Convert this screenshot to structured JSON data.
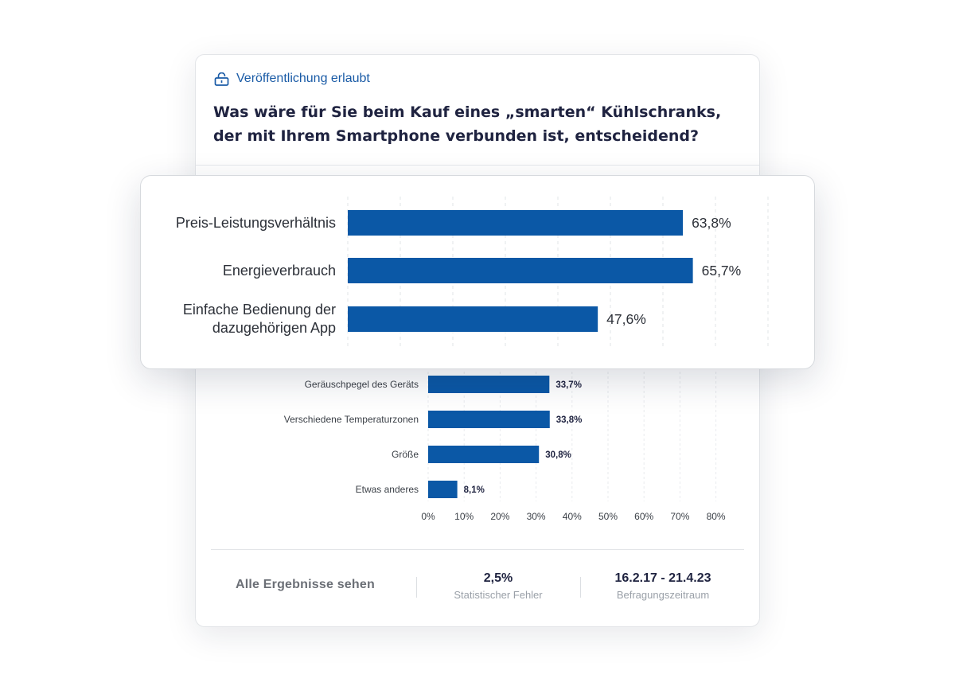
{
  "badge": {
    "label": "Veröffentlichung erlaubt",
    "icon": "unlock-icon"
  },
  "question": {
    "line1": "Was wäre für Sie beim Kauf eines „smarten“ Kühlschranks,",
    "line2": "der mit Ihrem Smartphone verbunden ist, entscheidend?"
  },
  "chart_data": {
    "type": "bar",
    "orientation": "horizontal",
    "categories": [
      "Preis-Leistungsverhältnis",
      "Energieverbrauch",
      "Einfache Bedienung der dazugehörigen App",
      "Geräuschpegel des Geräts",
      "Verschiedene Temperaturzonen",
      "Größe",
      "Etwas anderes"
    ],
    "values": [
      63.8,
      65.7,
      47.6,
      33.7,
      33.8,
      30.8,
      8.1
    ],
    "value_labels": [
      "63,8%",
      "65,7%",
      "47,6%",
      "33,7%",
      "33,8%",
      "30,8%",
      "8,1%"
    ],
    "xlim": [
      0,
      80
    ],
    "x_ticks": [
      "0%",
      "10%",
      "20%",
      "30%",
      "40%",
      "50%",
      "60%",
      "70%",
      "80%"
    ],
    "grid": true,
    "bar_color": "#0b58a6",
    "highlighted_count": 3
  },
  "footer": {
    "see_all": "Alle Ergebnisse sehen",
    "error_value": "2,5%",
    "error_label": "Statistischer Fehler",
    "period_value": "16.2.17 - 21.4.23",
    "period_label": "Befragungszeitraum"
  },
  "colors": {
    "accent": "#1a5ba6",
    "bar": "#0b58a6",
    "title": "#1f2340"
  }
}
